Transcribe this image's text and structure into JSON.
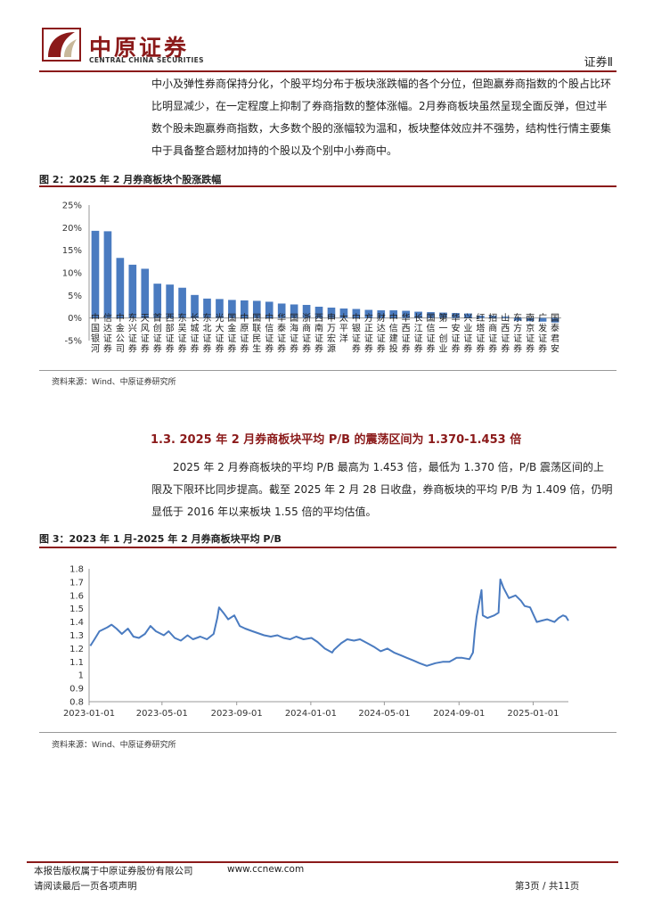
{
  "header": {
    "logo_cn": "中原证券",
    "logo_en": "CENTRAL CHINA SECURITIES",
    "section": "证券Ⅱ"
  },
  "intro_paragraph": "中小及弹性券商保持分化，个股平均分布于板块涨跌幅的各个分位，但跑赢券商指数的个股占比环比明显减少，在一定程度上抑制了券商指数的整体涨幅。2月券商板块虽然呈现全面反弹，但过半数个股未跑赢券商指数，大多数个股的涨幅较为温和，板块整体效应并不强势，结构性行情主要集中于具备整合题材加持的个股以及个别中小券商中。",
  "figure2": {
    "title": "图 2：2025 年 2 月券商板块个股涨跌幅",
    "source": "资料来源：Wind、中原证券研究所"
  },
  "section": {
    "heading": "1.3.  2025 年 2 月券商板块平均 P/B 的震荡区间为 1.370-1.453 倍",
    "paragraph": "2025 年 2 月券商板块的平均 P/B 最高为 1.453 倍，最低为 1.370 倍，P/B 震荡区间的上限及下限环比同步提高。截至 2025 年 2 月 28 日收盘，券商板块的平均 P/B 为 1.409 倍，仍明显低于 2016 年以来板块 1.55 倍的平均估值。"
  },
  "figure3": {
    "title": "图 3：2023 年 1 月-2025 年 2 月券商板块平均 P/B",
    "source": "资料来源：Wind、中原证券研究所"
  },
  "footer": {
    "copyright": "本报告版权属于中原证券股份有限公司",
    "website": "www.ccnew.com",
    "disclaimer": "请阅读最后一页各项声明",
    "page": "第3页  /  共11页"
  },
  "chart_data": [
    {
      "type": "bar",
      "categories": [
        "中国银河",
        "信达证券",
        "中金公司",
        "东兴证券",
        "天风证券",
        "首创证券",
        "西部证券",
        "东吴证券",
        "长城证券",
        "东北证券",
        "光大证券",
        "国金证券",
        "中原证券",
        "国联民生",
        "中信证券",
        "华泰证券",
        "国海证券",
        "浙商证券",
        "西南证券",
        "申万宏源",
        "太平洋",
        "中银证券",
        "方正证券",
        "财达证券",
        "中信建投",
        "华西证券",
        "长江证券",
        "国信证券",
        "第一创业",
        "华安证券",
        "兴业证券",
        "红塔证券",
        "招商证券",
        "山西证券",
        "东方证券",
        "南京证券",
        "广发证券",
        "国泰君安"
      ],
      "values": [
        19.3,
        19.2,
        13.3,
        11.8,
        10.9,
        7.6,
        7.4,
        6.7,
        5.1,
        4.3,
        4.2,
        4.0,
        3.9,
        3.8,
        3.6,
        3.2,
        3.0,
        2.9,
        2.5,
        2.3,
        2.1,
        2.0,
        1.8,
        1.7,
        1.7,
        1.6,
        1.4,
        1.3,
        1.2,
        1.1,
        1.0,
        0.5,
        0.5,
        0.3,
        -0.6,
        -0.7,
        -0.8,
        -1.0
      ],
      "y_ticks": [
        "25%",
        "20%",
        "15%",
        "10%",
        "5%",
        "0%",
        "-5%"
      ],
      "ylim": [
        -5,
        25
      ],
      "color": "#4a7bc0"
    },
    {
      "type": "line",
      "x_ticks": [
        "2023-01-01",
        "2023-05-01",
        "2023-09-01",
        "2024-01-01",
        "2024-05-01",
        "2024-09-01",
        "2025-01-01"
      ],
      "y_ticks": [
        "1.8",
        "1.7",
        "1.6",
        "1.5",
        "1.4",
        "1.3",
        "1.2",
        "1.1",
        "1",
        "0.9",
        "0.8"
      ],
      "ylim": [
        0.8,
        1.8
      ],
      "xlim": [
        "2023-01-01",
        "2025-02-28"
      ],
      "color": "#4a7bc0",
      "series": [
        {
          "points": [
            [
              "2023-01-03",
              1.22
            ],
            [
              "2023-01-10",
              1.27
            ],
            [
              "2023-01-18",
              1.33
            ],
            [
              "2023-01-31",
              1.36
            ],
            [
              "2023-02-07",
              1.38
            ],
            [
              "2023-02-15",
              1.35
            ],
            [
              "2023-02-24",
              1.31
            ],
            [
              "2023-03-06",
              1.35
            ],
            [
              "2023-03-15",
              1.29
            ],
            [
              "2023-03-24",
              1.28
            ],
            [
              "2023-04-03",
              1.31
            ],
            [
              "2023-04-12",
              1.37
            ],
            [
              "2023-04-21",
              1.33
            ],
            [
              "2023-05-04",
              1.3
            ],
            [
              "2023-05-12",
              1.33
            ],
            [
              "2023-05-22",
              1.28
            ],
            [
              "2023-06-01",
              1.26
            ],
            [
              "2023-06-12",
              1.3
            ],
            [
              "2023-06-21",
              1.27
            ],
            [
              "2023-07-03",
              1.29
            ],
            [
              "2023-07-14",
              1.27
            ],
            [
              "2023-07-25",
              1.31
            ],
            [
              "2023-07-31",
              1.43
            ],
            [
              "2023-08-03",
              1.51
            ],
            [
              "2023-08-10",
              1.47
            ],
            [
              "2023-08-18",
              1.42
            ],
            [
              "2023-08-28",
              1.45
            ],
            [
              "2023-09-06",
              1.37
            ],
            [
              "2023-09-15",
              1.35
            ],
            [
              "2023-09-27",
              1.33
            ],
            [
              "2023-10-16",
              1.3
            ],
            [
              "2023-10-27",
              1.29
            ],
            [
              "2023-11-07",
              1.3
            ],
            [
              "2023-11-17",
              1.28
            ],
            [
              "2023-11-28",
              1.27
            ],
            [
              "2023-12-08",
              1.29
            ],
            [
              "2023-12-20",
              1.27
            ],
            [
              "2024-01-02",
              1.28
            ],
            [
              "2024-01-12",
              1.25
            ],
            [
              "2024-01-24",
              1.2
            ],
            [
              "2024-02-05",
              1.17
            ],
            [
              "2024-02-08",
              1.19
            ],
            [
              "2024-02-20",
              1.24
            ],
            [
              "2024-03-01",
              1.27
            ],
            [
              "2024-03-12",
              1.26
            ],
            [
              "2024-03-22",
              1.27
            ],
            [
              "2024-04-03",
              1.24
            ],
            [
              "2024-04-15",
              1.21
            ],
            [
              "2024-04-25",
              1.18
            ],
            [
              "2024-05-06",
              1.2
            ],
            [
              "2024-05-17",
              1.17
            ],
            [
              "2024-05-28",
              1.15
            ],
            [
              "2024-06-07",
              1.13
            ],
            [
              "2024-06-18",
              1.11
            ],
            [
              "2024-06-28",
              1.09
            ],
            [
              "2024-07-10",
              1.07
            ],
            [
              "2024-07-24",
              1.09
            ],
            [
              "2024-08-05",
              1.1
            ],
            [
              "2024-08-16",
              1.1
            ],
            [
              "2024-08-28",
              1.13
            ],
            [
              "2024-09-06",
              1.13
            ],
            [
              "2024-09-18",
              1.12
            ],
            [
              "2024-09-24",
              1.17
            ],
            [
              "2024-09-27",
              1.33
            ],
            [
              "2024-09-30",
              1.44
            ],
            [
              "2024-10-08",
              1.64
            ],
            [
              "2024-10-10",
              1.45
            ],
            [
              "2024-10-18",
              1.43
            ],
            [
              "2024-10-29",
              1.45
            ],
            [
              "2024-11-05",
              1.47
            ],
            [
              "2024-11-08",
              1.72
            ],
            [
              "2024-11-13",
              1.66
            ],
            [
              "2024-11-22",
              1.58
            ],
            [
              "2024-12-03",
              1.6
            ],
            [
              "2024-12-12",
              1.56
            ],
            [
              "2024-12-18",
              1.52
            ],
            [
              "2024-12-27",
              1.51
            ],
            [
              "2025-01-02",
              1.45
            ],
            [
              "2025-01-07",
              1.4
            ],
            [
              "2025-01-15",
              1.41
            ],
            [
              "2025-01-24",
              1.42
            ],
            [
              "2025-02-05",
              1.4
            ],
            [
              "2025-02-12",
              1.43
            ],
            [
              "2025-02-19",
              1.45
            ],
            [
              "2025-02-24",
              1.44
            ],
            [
              "2025-02-28",
              1.41
            ]
          ]
        }
      ]
    }
  ]
}
